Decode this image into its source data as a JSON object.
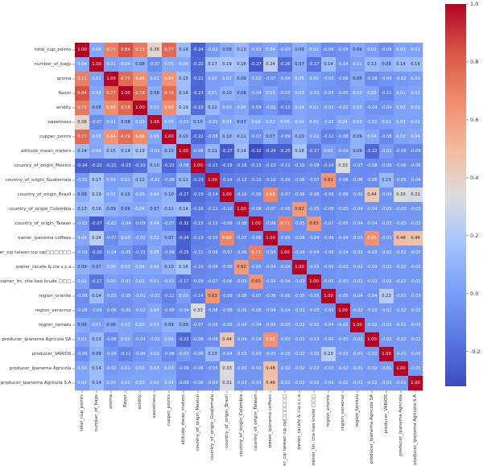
{
  "chart_data": {
    "type": "heatmap",
    "labels": [
      "total_cup_points",
      "number_of_bags",
      "aroma",
      "flavor",
      "acidity",
      "sweetness",
      "cupper_points",
      "altitude_mean_meters",
      "country_of_origin_Mexico",
      "country_of_origin_Guatemala",
      "country_of_origin_Brazil",
      "country_of_origin_Colombia",
      "country_of_origin_Taiwan",
      "owner_ipanema coffees",
      "owner_cqi taiwan icp cqi□□□□□□",
      "owner_racafe & cia s.c.a",
      "owner_lin, che-hao krude □□□",
      "region_oriente",
      "region_veracruz",
      "region_tarrazu",
      "producer_Ipanema Agricola SA",
      "producer_VARIOS",
      "producer_Ipanema Agricola",
      "producer_Ipanema Agricola S.A"
    ],
    "values": [
      [
        1.0,
        0.04,
        0.71,
        0.84,
        0.72,
        0.38,
        0.77,
        0.14,
        -0.24,
        -0.02,
        0.08,
        0.13,
        -0.01,
        0.04,
        -0.03,
        0.09,
        0.02,
        -0.06,
        -0.05,
        0.06,
        0.01,
        -0.06,
        0.03,
        0.02
      ],
      [
        0.04,
        1.0,
        0.01,
        0.04,
        0.08,
        -0.07,
        0.05,
        0.04,
        -0.22,
        0.17,
        0.19,
        0.16,
        -0.27,
        0.24,
        -0.2,
        0.07,
        -0.17,
        0.14,
        -0.04,
        0.01,
        0.13,
        0.09,
        0.14,
        0.14
      ],
      [
        0.71,
        0.01,
        1.0,
        0.77,
        0.66,
        0.01,
        0.64,
        0.15,
        -0.21,
        0.0,
        0.02,
        0.09,
        -0.02,
        -0.07,
        -0.04,
        0.05,
        0.0,
        -0.03,
        -0.06,
        0.06,
        -0.08,
        -0.04,
        -0.02,
        -0.0
      ],
      [
        0.84,
        0.04,
        0.77,
        1.0,
        0.78,
        0.08,
        0.76,
        0.14,
        -0.23,
        0.01,
        0.1,
        0.06,
        -0.04,
        0.03,
        -0.05,
        0.03,
        -0.01,
        -0.05,
        -0.05,
        0.03,
        0.03,
        -0.11,
        0.01,
        0.02
      ],
      [
        0.72,
        0.08,
        0.66,
        0.78,
        1.0,
        0.03,
        0.66,
        0.19,
        -0.19,
        0.12,
        0.0,
        0.04,
        -0.09,
        -0.02,
        -0.13,
        0.04,
        0.01,
        -0.01,
        -0.02,
        0.03,
        -0.04,
        -0.04,
        0.02,
        0.03
      ],
      [
        0.38,
        -0.07,
        0.01,
        0.08,
        0.03,
        1.0,
        0.05,
        -0.01,
        0.1,
        -0.02,
        0.04,
        0.07,
        0.04,
        0.02,
        0.05,
        0.04,
        0.01,
        -0.02,
        0.04,
        0.03,
        -0.02,
        0.0,
        0.03,
        0.02
      ],
      [
        0.77,
        0.05,
        0.64,
        0.76,
        0.66,
        0.05,
        1.0,
        0.1,
        -0.22,
        -0.08,
        0.1,
        0.11,
        -0.07,
        0.07,
        -0.09,
        0.1,
        -0.01,
        -0.12,
        -0.08,
        0.09,
        0.04,
        -0.08,
        0.03,
        0.04
      ],
      [
        0.14,
        0.04,
        0.15,
        0.14,
        0.19,
        -0.01,
        0.1,
        1.0,
        -0.08,
        0.11,
        -0.27,
        0.14,
        -0.32,
        -0.24,
        -0.25,
        0.18,
        -0.17,
        0.0,
        -0.04,
        0.09,
        -0.22,
        -0.01,
        -0.09,
        -0.09
      ],
      [
        -0.24,
        -0.22,
        -0.21,
        -0.23,
        -0.19,
        0.1,
        -0.22,
        -0.08,
        1.0,
        -0.23,
        -0.19,
        -0.16,
        -0.15,
        -0.13,
        -0.11,
        -0.1,
        -0.09,
        -0.14,
        0.33,
        -0.07,
        -0.08,
        -0.06,
        -0.06,
        -0.06
      ],
      [
        -0.02,
        0.17,
        0.0,
        0.01,
        0.12,
        -0.02,
        -0.08,
        0.11,
        -0.23,
        1.0,
        -0.14,
        -0.12,
        -0.12,
        -0.1,
        -0.09,
        -0.08,
        -0.07,
        0.63,
        -0.08,
        -0.06,
        -0.06,
        0.13,
        -0.05,
        -0.04
      ],
      [
        0.08,
        0.19,
        0.02,
        0.1,
        0.0,
        0.04,
        0.1,
        -0.27,
        -0.19,
        -0.14,
        1.0,
        -0.1,
        -0.09,
        0.68,
        -0.07,
        -0.06,
        -0.06,
        -0.09,
        -0.06,
        -0.05,
        0.44,
        -0.04,
        0.33,
        0.31
      ],
      [
        0.13,
        0.16,
        0.09,
        0.06,
        0.04,
        0.07,
        0.11,
        0.14,
        -0.16,
        -0.12,
        -0.1,
        1.0,
        -0.08,
        -0.07,
        -0.06,
        0.62,
        -0.05,
        -0.08,
        -0.05,
        -0.04,
        -0.04,
        -0.03,
        -0.03,
        -0.03
      ],
      [
        -0.01,
        -0.27,
        -0.02,
        -0.04,
        -0.09,
        0.04,
        -0.07,
        -0.32,
        -0.15,
        -0.12,
        -0.09,
        -0.08,
        1.0,
        -0.06,
        0.71,
        -0.05,
        0.63,
        -0.07,
        -0.05,
        -0.04,
        -0.04,
        -0.03,
        -0.03,
        -0.03
      ],
      [
        0.04,
        0.24,
        -0.07,
        0.03,
        -0.02,
        0.02,
        0.07,
        -0.24,
        -0.13,
        -0.1,
        0.68,
        -0.07,
        -0.06,
        1.0,
        -0.05,
        -0.04,
        -0.04,
        -0.06,
        -0.04,
        -0.03,
        0.65,
        -0.03,
        0.48,
        0.46
      ],
      [
        -0.03,
        -0.2,
        -0.04,
        -0.05,
        -0.13,
        0.05,
        -0.09,
        -0.25,
        -0.11,
        -0.09,
        -0.07,
        -0.06,
        0.71,
        -0.05,
        1.0,
        -0.04,
        -0.04,
        -0.06,
        -0.04,
        -0.03,
        -0.03,
        -0.02,
        -0.02,
        -0.02
      ],
      [
        0.09,
        0.07,
        0.05,
        0.03,
        0.04,
        0.04,
        0.1,
        0.18,
        -0.1,
        -0.08,
        -0.06,
        0.62,
        -0.05,
        -0.04,
        -0.04,
        1.0,
        -0.03,
        -0.05,
        -0.03,
        -0.02,
        -0.03,
        -0.02,
        -0.02,
        -0.02
      ],
      [
        0.02,
        -0.17,
        0.0,
        -0.01,
        0.01,
        0.01,
        -0.01,
        -0.17,
        -0.09,
        -0.07,
        -0.06,
        -0.05,
        0.63,
        -0.04,
        -0.04,
        -0.03,
        1.0,
        -0.05,
        -0.03,
        -0.02,
        -0.03,
        -0.02,
        -0.02,
        -0.02
      ],
      [
        -0.06,
        0.14,
        -0.03,
        -0.05,
        -0.01,
        -0.02,
        -0.12,
        0.0,
        -0.14,
        0.63,
        -0.09,
        -0.08,
        -0.07,
        -0.06,
        -0.06,
        -0.05,
        -0.05,
        1.0,
        -0.05,
        -0.04,
        -0.04,
        0.23,
        -0.03,
        -0.03
      ],
      [
        -0.05,
        -0.04,
        -0.06,
        -0.05,
        -0.02,
        0.04,
        -0.08,
        -0.04,
        0.33,
        -0.08,
        -0.06,
        -0.05,
        -0.05,
        -0.04,
        -0.04,
        -0.03,
        -0.03,
        -0.05,
        1.0,
        -0.02,
        -0.03,
        -0.02,
        -0.02,
        -0.02
      ],
      [
        0.06,
        0.01,
        0.06,
        0.03,
        0.03,
        0.03,
        0.09,
        0.09,
        -0.07,
        -0.06,
        -0.05,
        -0.04,
        -0.04,
        -0.03,
        -0.03,
        -0.02,
        -0.02,
        -0.04,
        -0.02,
        1.0,
        -0.02,
        -0.01,
        -0.01,
        -0.01
      ],
      [
        0.01,
        0.13,
        -0.08,
        0.03,
        -0.04,
        -0.02,
        0.04,
        -0.22,
        -0.08,
        -0.06,
        0.44,
        -0.04,
        -0.04,
        0.65,
        -0.03,
        -0.03,
        -0.03,
        -0.04,
        -0.03,
        -0.02,
        1.0,
        -0.02,
        -0.02,
        -0.02
      ],
      [
        -0.06,
        0.09,
        -0.04,
        -0.11,
        -0.04,
        0.0,
        -0.08,
        -0.01,
        -0.06,
        0.13,
        -0.04,
        -0.03,
        -0.03,
        -0.03,
        -0.02,
        -0.02,
        -0.02,
        0.23,
        -0.02,
        -0.01,
        -0.02,
        1.0,
        -0.01,
        -0.01
      ],
      [
        0.03,
        0.14,
        -0.02,
        0.01,
        0.02,
        0.03,
        0.03,
        -0.09,
        -0.06,
        -0.05,
        0.33,
        -0.03,
        -0.03,
        0.48,
        -0.02,
        -0.02,
        -0.02,
        -0.03,
        -0.02,
        -0.01,
        -0.02,
        -0.01,
        1.0,
        -0.01
      ],
      [
        0.02,
        0.14,
        -0.0,
        0.02,
        0.03,
        0.02,
        0.04,
        -0.09,
        -0.06,
        -0.04,
        0.31,
        -0.03,
        -0.03,
        0.46,
        -0.02,
        -0.02,
        -0.02,
        -0.03,
        -0.02,
        -0.01,
        -0.02,
        -0.01,
        -0.01,
        1.0
      ]
    ],
    "colormap": "coolwarm",
    "value_range": [
      -0.32,
      1.0
    ],
    "colorbar": {
      "position": "right",
      "ticks": [
        "1.0",
        "0.8",
        "0.6",
        "0.4",
        "0.2",
        "0.0",
        "-0.2"
      ]
    },
    "annotated": true
  }
}
